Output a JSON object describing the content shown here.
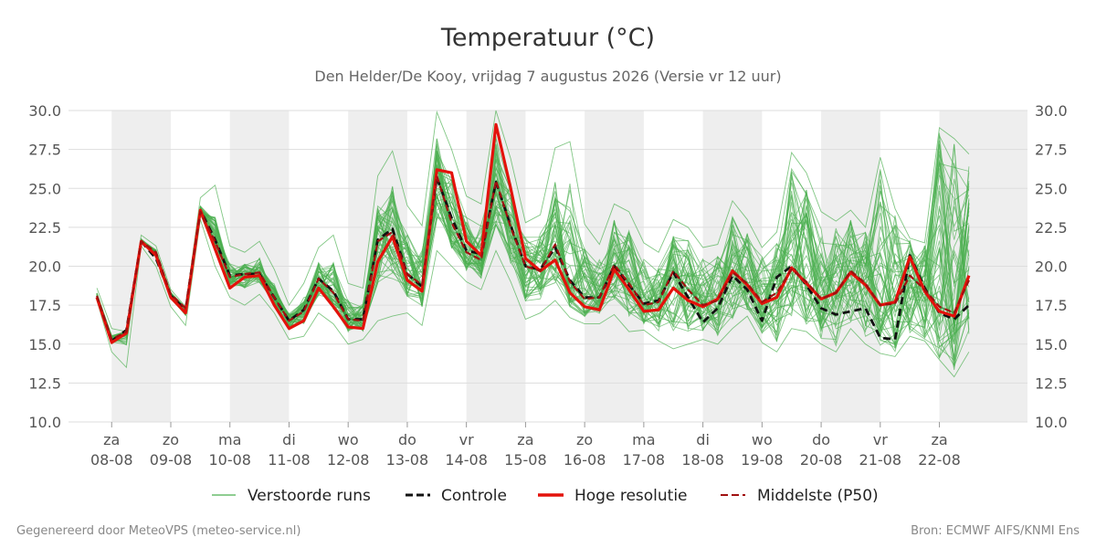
{
  "chart_data": {
    "type": "line",
    "title": "Temperatuur (°C)",
    "subtitle": "Den Helder/De Kooy, vrijdag  7 augustus 2026 (Versie vr 12 uur)",
    "ylim": [
      10,
      30
    ],
    "yticks": [
      "10.0",
      "12.5",
      "15.0",
      "17.5",
      "20.0",
      "22.5",
      "25.0",
      "27.5",
      "30.0"
    ],
    "ytick_values": [
      10,
      12.5,
      15,
      17.5,
      20,
      22.5,
      25,
      27.5,
      30
    ],
    "xlim_days": [
      -0.73,
      15.49
    ],
    "x_ticks": [
      {
        "day": "za",
        "date": "08-08"
      },
      {
        "day": "zo",
        "date": "09-08"
      },
      {
        "day": "ma",
        "date": "10-08"
      },
      {
        "day": "di",
        "date": "11-08"
      },
      {
        "day": "wo",
        "date": "12-08"
      },
      {
        "day": "do",
        "date": "13-08"
      },
      {
        "day": "vr",
        "date": "14-08"
      },
      {
        "day": "za",
        "date": "15-08"
      },
      {
        "day": "zo",
        "date": "16-08"
      },
      {
        "day": "ma",
        "date": "17-08"
      },
      {
        "day": "di",
        "date": "18-08"
      },
      {
        "day": "wo",
        "date": "19-08"
      },
      {
        "day": "do",
        "date": "20-08"
      },
      {
        "day": "vr",
        "date": "21-08"
      },
      {
        "day": "za",
        "date": "22-08"
      }
    ],
    "weekend_bands": [
      [
        0,
        1
      ],
      [
        2,
        3
      ],
      [
        4,
        5
      ],
      [
        6,
        7
      ],
      [
        8,
        9
      ],
      [
        10,
        11
      ],
      [
        12,
        13
      ],
      [
        14,
        15.49
      ]
    ],
    "x_days": [
      -0.25,
      0,
      0.25,
      0.5,
      0.75,
      1,
      1.25,
      1.5,
      1.75,
      2,
      2.25,
      2.5,
      2.75,
      3,
      3.25,
      3.5,
      3.75,
      4,
      4.25,
      4.5,
      4.75,
      5,
      5.25,
      5.5,
      5.75,
      6,
      6.25,
      6.5,
      6.75,
      7,
      7.25,
      7.5,
      7.75,
      8,
      8.25,
      8.5,
      8.75,
      9,
      9.25,
      9.5,
      9.75,
      10,
      10.25,
      10.5,
      10.75,
      11,
      11.25,
      11.5,
      11.75,
      12,
      12.25,
      12.5,
      12.75,
      13,
      13.25,
      13.5,
      13.75,
      14,
      14.25,
      14.5,
      14.75,
      15,
      15.25,
      15.5
    ],
    "series": [
      {
        "name": "Controle",
        "values": [
          18.0,
          15.2,
          15.9,
          21.6,
          20.5,
          18.1,
          17.2,
          23.6,
          21.7,
          19.4,
          19.5,
          19.5,
          18.0,
          16.5,
          17.2,
          19.2,
          18.4,
          16.6,
          16.6,
          21.7,
          22.4,
          19.5,
          18.7,
          25.7,
          23.1,
          21.0,
          20.8,
          25.4,
          22.6,
          20.0,
          19.8,
          21.2,
          19.1,
          18.0,
          18.0,
          20.0,
          18.8,
          17.6,
          17.8,
          19.6,
          18.0,
          16.4,
          17.3,
          19.4,
          18.5,
          16.5,
          19.3,
          20.0,
          18.8,
          17.3,
          16.9,
          17.1,
          17.3,
          15.4,
          15.3,
          20.7,
          18.6,
          17.0,
          16.6,
          17.5
        ]
      },
      {
        "name": "Hoge resolutie",
        "values": [
          18.0,
          15.1,
          15.7,
          21.6,
          20.7,
          18.0,
          17.0,
          23.6,
          21.1,
          18.6,
          19.3,
          19.4,
          17.5,
          16.0,
          16.5,
          18.6,
          17.4,
          16.1,
          16.0,
          20.3,
          21.9,
          19.1,
          18.4,
          26.2,
          26.0,
          21.6,
          20.7,
          29.1,
          25.0,
          20.5,
          19.7,
          20.4,
          18.3,
          17.4,
          17.2,
          19.8,
          18.5,
          17.1,
          17.2,
          18.6,
          17.8,
          17.4,
          17.9,
          19.7,
          18.8,
          17.6,
          18.0,
          19.9,
          18.9,
          17.9,
          18.3,
          19.6,
          18.8,
          17.5,
          17.7,
          20.6,
          18.4,
          17.1,
          16.8,
          19.4
        ]
      },
      {
        "name": "Middelste (P50)",
        "values": [
          18.1,
          15.3,
          15.8,
          21.6,
          20.9,
          18.2,
          17.3,
          23.5,
          21.6,
          19.3,
          19.5,
          19.6,
          18.0,
          16.5,
          17.1,
          19.2,
          18.3,
          16.6,
          16.5,
          21.6,
          22.2,
          19.5,
          18.8,
          25.8,
          22.8,
          20.9,
          20.4,
          25.5,
          22.5,
          20.0,
          19.7,
          21.4,
          19.0,
          17.9,
          18.0,
          20.1,
          18.9,
          17.5,
          17.7,
          19.7,
          18.5,
          17.5,
          17.8,
          19.6,
          18.9,
          17.7,
          18.3,
          19.8,
          19.0,
          17.9,
          18.3,
          19.7,
          18.9,
          17.5,
          17.6,
          19.4,
          18.5,
          17.4,
          17.0,
          19.1
        ]
      }
    ],
    "ensemble": {
      "name": "Verstoorde runs",
      "member_count": 50,
      "median": [
        18.1,
        15.3,
        15.8,
        21.6,
        20.9,
        18.2,
        17.3,
        23.5,
        21.6,
        19.3,
        19.5,
        19.6,
        18.0,
        16.5,
        17.1,
        19.2,
        18.3,
        16.6,
        16.5,
        21.6,
        22.2,
        19.5,
        18.8,
        25.8,
        22.8,
        20.9,
        20.4,
        25.5,
        22.5,
        20.0,
        19.7,
        21.4,
        19.0,
        17.9,
        18.0,
        20.1,
        18.9,
        17.5,
        17.7,
        19.7,
        18.5,
        17.5,
        17.8,
        19.6,
        18.9,
        17.7,
        18.3,
        19.8,
        19.0,
        17.9,
        18.3,
        19.7,
        18.9,
        17.5,
        17.6,
        19.4,
        18.5,
        17.4,
        17.0,
        19.1
      ],
      "min": [
        17.8,
        14.5,
        13.5,
        21.3,
        20.0,
        17.4,
        16.2,
        23.0,
        20.0,
        18.0,
        17.5,
        18.2,
        17.0,
        15.3,
        15.5,
        17.0,
        16.3,
        15.0,
        15.3,
        16.5,
        16.8,
        17.0,
        16.2,
        21.0,
        20.0,
        19.0,
        18.5,
        21.0,
        19.0,
        16.6,
        17.0,
        17.8,
        16.7,
        16.3,
        16.3,
        16.9,
        15.8,
        15.9,
        15.2,
        14.7,
        15.0,
        15.3,
        15.0,
        16.0,
        16.8,
        15.1,
        14.5,
        16.0,
        15.8,
        15.0,
        14.5,
        16.0,
        15.0,
        14.4,
        14.2,
        15.5,
        15.2,
        14.0,
        12.9,
        14.5
      ],
      "max": [
        18.6,
        16.0,
        15.8,
        22.0,
        21.3,
        18.5,
        17.4,
        24.4,
        25.2,
        21.3,
        20.9,
        21.6,
        19.8,
        17.5,
        18.9,
        21.2,
        22.0,
        18.9,
        18.6,
        25.8,
        27.4,
        23.9,
        22.6,
        29.9,
        27.5,
        24.5,
        24.0,
        30.0,
        26.9,
        22.8,
        23.3,
        27.6,
        28.0,
        22.7,
        21.4,
        24.0,
        23.5,
        21.5,
        20.9,
        23.0,
        22.5,
        21.2,
        21.4,
        24.2,
        23.0,
        21.2,
        22.2,
        27.3,
        26.0,
        23.5,
        22.9,
        23.6,
        22.5,
        27.0,
        23.7,
        21.8,
        21.5,
        28.9,
        28.2,
        27.2
      ]
    },
    "legend": {
      "placement": "bottom",
      "entries": [
        {
          "label": "Verstoorde runs",
          "color": "#4caf50",
          "style": "thin-solid"
        },
        {
          "label": "Controle",
          "color": "#111111",
          "style": "dashed"
        },
        {
          "label": "Hoge resolutie",
          "color": "#e3120b",
          "style": "solid"
        },
        {
          "label": "Middelste (P50)",
          "color": "#a01010",
          "style": "dashed"
        }
      ]
    },
    "grid": true,
    "colors": {
      "ensemble": "#4caf50",
      "control": "#111111",
      "hires": "#e3120b",
      "p50": "#a01010",
      "band": "#eeeeee",
      "gridline": "#dddddd"
    }
  },
  "footer": {
    "left": "Gegenereerd door MeteoVPS (meteo-service.nl)",
    "right": "Bron: ECMWF AIFS/KNMI Ens"
  }
}
